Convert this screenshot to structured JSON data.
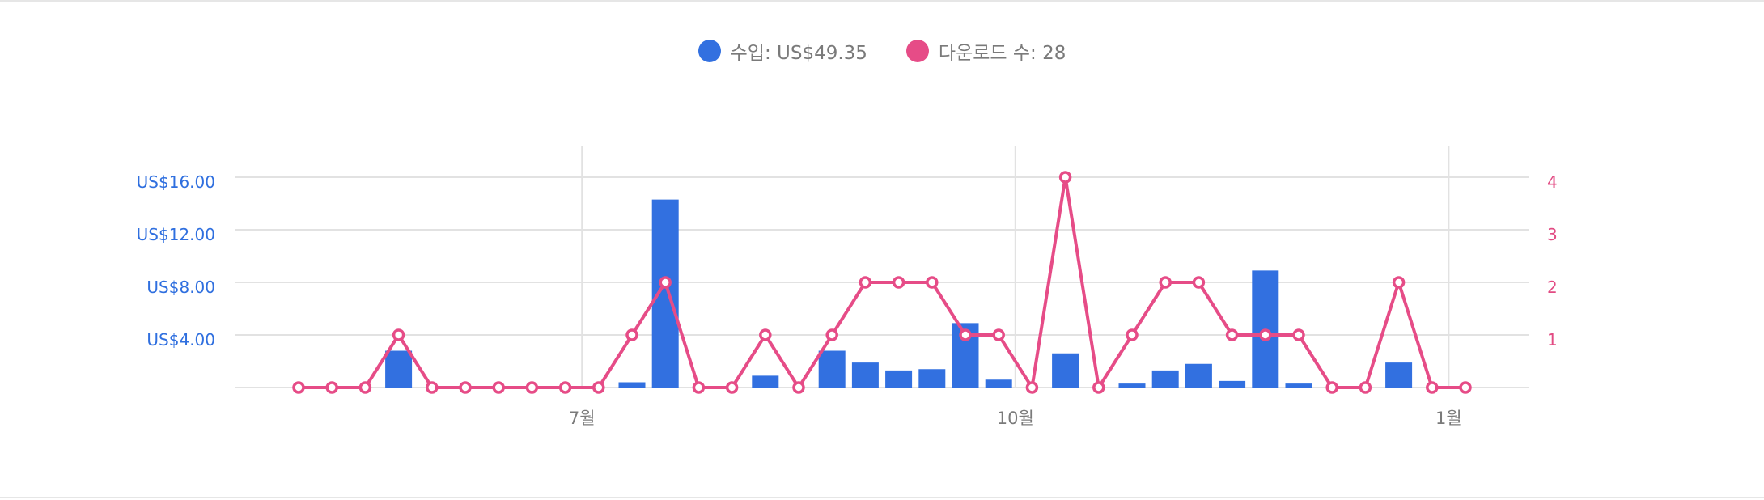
{
  "legend": {
    "revenue": "수입: US$49.35",
    "downloads": "다운로드 수: 28"
  },
  "colors": {
    "revenue": "#3270e0",
    "downloads": "#e64c87",
    "grid": "#e2e2e2",
    "axis_text": "#7a7a7a"
  },
  "chart_data": {
    "type": "bar",
    "title": "",
    "xlabel": "",
    "ylabel": "",
    "x_count": 36,
    "x_ticks": [
      {
        "index": 9,
        "label": "7월"
      },
      {
        "index": 22,
        "label": "10월"
      },
      {
        "index": 35,
        "label": "1월"
      }
    ],
    "y_left": {
      "ylim": [
        0,
        16
      ],
      "ticks": [
        {
          "value": 4,
          "label": "US$4.00"
        },
        {
          "value": 8,
          "label": "US$8.00"
        },
        {
          "value": 12,
          "label": "US$12.00"
        },
        {
          "value": 16,
          "label": "US$16.00"
        }
      ]
    },
    "y_right": {
      "ylim": [
        0,
        4
      ],
      "ticks": [
        {
          "value": 1,
          "label": "1"
        },
        {
          "value": 2,
          "label": "2"
        },
        {
          "value": 3,
          "label": "3"
        },
        {
          "value": 4,
          "label": "4"
        }
      ]
    },
    "series": [
      {
        "name": "수입",
        "type": "bar",
        "axis": "left",
        "values": [
          0,
          0,
          0,
          2.8,
          0,
          0,
          0,
          0,
          0,
          0,
          0.4,
          14.3,
          0,
          0,
          0.9,
          0,
          2.8,
          1.9,
          1.3,
          1.4,
          4.9,
          0.6,
          0,
          2.6,
          0,
          0.3,
          1.3,
          1.8,
          0.5,
          8.9,
          0.3,
          0,
          0,
          1.9,
          0,
          0
        ]
      },
      {
        "name": "다운로드 수",
        "type": "line",
        "axis": "right",
        "values": [
          0,
          0,
          0,
          1,
          0,
          0,
          0,
          0,
          0,
          0,
          1,
          2,
          0,
          0,
          1,
          0,
          1,
          2,
          2,
          2,
          1,
          1,
          0,
          4,
          0,
          1,
          2,
          2,
          1,
          1,
          1,
          0,
          0,
          2,
          0,
          0
        ]
      }
    ],
    "grid": true,
    "legend_position": "top-center"
  }
}
